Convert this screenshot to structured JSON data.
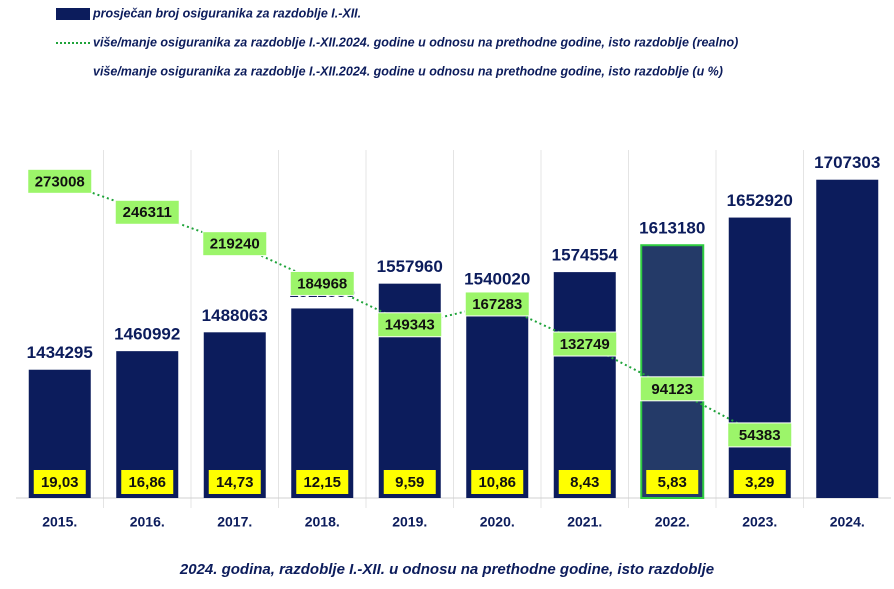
{
  "chart_data": {
    "type": "bar_line",
    "caption": "2024. godina, razdoblje I.-XII. u odnosu na prethodne godine, isto razdoblje",
    "categories": [
      "2015.",
      "2016.",
      "2017.",
      "2018.",
      "2019.",
      "2020.",
      "2021.",
      "2022.",
      "2023.",
      "2024."
    ],
    "series": [
      {
        "name": "prosječan broj osiguranika za razdoblje I.-XII.",
        "mark": "bar",
        "color": "#0c1c5c",
        "highlight": 7,
        "highlight_color": "#243a68",
        "highlight_border": "#2ecc40",
        "values": [
          1434295,
          1460992,
          1488063,
          1522335,
          1557960,
          1540020,
          1574554,
          1613180,
          1652920,
          1707303
        ]
      },
      {
        "name": "više/manje osiguranika za razdoblje I.-XII.2024. godine u odnosu na prethodne godine, isto razdoblje (realno)",
        "mark": "line",
        "axis": "y2",
        "color": "#1fa33a",
        "label_color": "#9cf56a",
        "values": [
          273008,
          246311,
          219240,
          184968,
          149343,
          167283,
          132749,
          94123,
          54383,
          null
        ]
      },
      {
        "name": "više/manje osiguranika za razdoblje I.-XII.2024. godine u odnosu na prethodne godine, isto razdoblje (u %)",
        "mark": "label",
        "color": "#ffff00",
        "values": [
          19.03,
          16.86,
          14.73,
          12.15,
          9.59,
          10.86,
          8.43,
          5.83,
          3.29,
          null
        ],
        "value_labels": [
          "19,03",
          "16,86",
          "14,73",
          "12,15",
          "9,59",
          "10,86",
          "8,43",
          "5,83",
          "3,29",
          null
        ]
      }
    ],
    "ylim": [
      1250000,
      1750000
    ],
    "y2lim": [
      0,
      300000
    ]
  }
}
